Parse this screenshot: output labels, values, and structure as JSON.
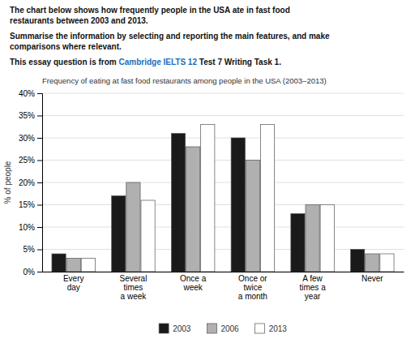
{
  "chart_data": {
    "type": "bar",
    "title": "Frequency of eating at fast food restaurants among people in the USA (2003–2013)",
    "annotations": [
      "The chart below shows how frequently people in the USA ate in fast food\nrestaurants between 2003 and 2013.",
      "Summarise the information by selecting and reporting the main features, and make\ncomparisons where relevant.",
      [
        "This essay question is from ",
        {
          "text": "Cambridge IELTS 12",
          "color": "#1a6ebd"
        },
        " Test 7 Writing Task 1."
      ]
    ],
    "y_label": "% of people",
    "categories": [
      "Every\nday",
      "Several\ntimes\na week",
      "Once a\nweek",
      "Once or\ntwice\na month",
      "A few\ntimes a\nyear",
      "Never"
    ],
    "series": [
      {
        "name": "2003",
        "color": "#1a1a1a",
        "values": [
          4,
          17,
          31,
          30,
          13,
          5
        ]
      },
      {
        "name": "2006",
        "color": "#b0b0b0",
        "values": [
          3,
          20,
          28,
          25,
          15,
          4
        ]
      },
      {
        "name": "2013",
        "color": "#ffffff",
        "values": [
          3,
          16,
          33,
          33,
          15,
          4
        ]
      }
    ],
    "ylim": [
      0,
      40
    ],
    "yticks": [
      {
        "value": 0,
        "label": "0%"
      },
      {
        "value": 5,
        "label": "5%"
      },
      {
        "value": 10,
        "label": "10%"
      },
      {
        "value": 15,
        "label": "15%"
      },
      {
        "value": 20,
        "label": "20%"
      },
      {
        "value": 25,
        "label": "25%"
      },
      {
        "value": 30,
        "label": "30%"
      },
      {
        "value": 35,
        "label": "35%"
      },
      {
        "value": 40,
        "label": "40%"
      }
    ],
    "grid": true,
    "legend": "bottom"
  }
}
